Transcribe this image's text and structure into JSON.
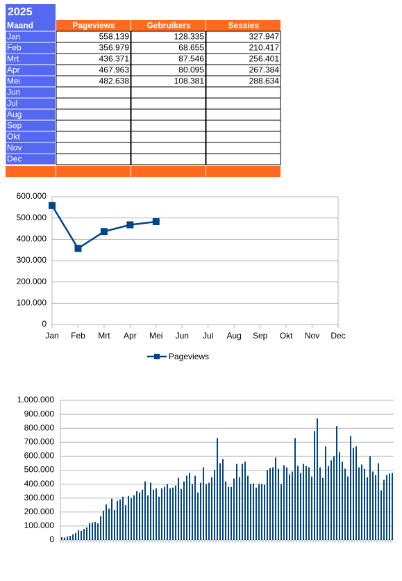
{
  "table": {
    "title": "2025",
    "header": [
      "Maand",
      "Pageviews",
      "Gebruikers",
      "Sessies"
    ],
    "rows": [
      [
        "Jan",
        "558.139",
        "128.335",
        "327.947"
      ],
      [
        "Feb",
        "356.979",
        "68.655",
        "210.417"
      ],
      [
        "Mrt",
        "436.371",
        "87.546",
        "256.401"
      ],
      [
        "Apr",
        "467.963",
        "80.095",
        "267.384"
      ],
      [
        "Mei",
        "482.638",
        "108.381",
        "288.634"
      ],
      [
        "Jun"
      ],
      [
        "Jul"
      ],
      [
        "Aug"
      ],
      [
        "Sep"
      ],
      [
        "Okt"
      ],
      [
        "Nov"
      ],
      [
        "Dec"
      ]
    ]
  },
  "chart_data": [
    {
      "type": "line",
      "categories": [
        "Jan",
        "Feb",
        "Mrt",
        "Apr",
        "Mei",
        "Jun",
        "Jul",
        "Aug",
        "Sep",
        "Okt",
        "Nov",
        "Dec"
      ],
      "series": [
        {
          "name": "Pageviews",
          "color": "#004586",
          "values": [
            558139,
            356979,
            436371,
            467963,
            482638,
            null,
            null,
            null,
            null,
            null,
            null,
            null
          ]
        }
      ],
      "ylim": [
        0,
        600000
      ],
      "yticks": [
        0,
        {
          "value": 100000,
          "label": "100.000"
        },
        {
          "value": 200000,
          "label": "200.000"
        },
        {
          "value": 300000,
          "label": "300.000"
        },
        {
          "value": 400000,
          "label": "400.000"
        },
        {
          "value": 500000,
          "label": "500.000"
        },
        {
          "value": 600000,
          "label": "600.000"
        }
      ],
      "grid": true,
      "legend": "bottom"
    },
    {
      "type": "bar",
      "color": "#004586",
      "categories": [
        null,
        null,
        null,
        null,
        null,
        null,
        null,
        null,
        null,
        null,
        null,
        null,
        null,
        null,
        null,
        null,
        null,
        null,
        null,
        null,
        null,
        null,
        null,
        null,
        null,
        null,
        null,
        null,
        null,
        null,
        null,
        null,
        null,
        null,
        null,
        null,
        null,
        null,
        null,
        null,
        null,
        null,
        null,
        null,
        null,
        null,
        null,
        null,
        null,
        null,
        null,
        null,
        null,
        null,
        null,
        null,
        null,
        null,
        null,
        null,
        null,
        null,
        null,
        null,
        null,
        null,
        null,
        null,
        null,
        null,
        null,
        null,
        null,
        null,
        null,
        null,
        null,
        null,
        null,
        null,
        null,
        null,
        null,
        null,
        null,
        null,
        null,
        null,
        null,
        null,
        null,
        null,
        null,
        null,
        null,
        null,
        null,
        null,
        null,
        null,
        null,
        null,
        null,
        null,
        null,
        null,
        null,
        null,
        null,
        null,
        null,
        null,
        null,
        null,
        null,
        null,
        null,
        null,
        null,
        null
      ],
      "values": [
        20000,
        18000,
        25000,
        30000,
        40000,
        50000,
        70000,
        65000,
        80000,
        90000,
        120000,
        125000,
        130000,
        120000,
        170000,
        210000,
        255000,
        225000,
        295000,
        215000,
        280000,
        290000,
        310000,
        250000,
        315000,
        300000,
        320000,
        350000,
        340000,
        360000,
        420000,
        320000,
        410000,
        360000,
        370000,
        310000,
        370000,
        380000,
        400000,
        370000,
        375000,
        390000,
        445000,
        365000,
        420000,
        460000,
        480000,
        400000,
        460000,
        340000,
        410000,
        520000,
        400000,
        410000,
        450000,
        500000,
        730000,
        550000,
        580000,
        420000,
        380000,
        380000,
        440000,
        545000,
        450000,
        545000,
        560000,
        460000,
        400000,
        405000,
        375000,
        400000,
        400000,
        395000,
        500000,
        515000,
        520000,
        590000,
        510000,
        400000,
        535000,
        520000,
        470000,
        490000,
        730000,
        530000,
        480000,
        545000,
        530000,
        520000,
        455000,
        780000,
        870000,
        520000,
        445000,
        670000,
        530000,
        570000,
        600000,
        815000,
        630000,
        560000,
        510000,
        455000,
        745000,
        660000,
        670000,
        520000,
        540000,
        510000,
        450000,
        600000,
        490000,
        465000,
        550000,
        355000,
        430000,
        465000,
        475000,
        480000
      ],
      "ylim": [
        0,
        1000000
      ],
      "yticks": [
        0,
        {
          "value": 100000,
          "label": "100.000"
        },
        {
          "value": 200000,
          "label": "200.000"
        },
        {
          "value": 300000,
          "label": "300.000"
        },
        {
          "value": 400000,
          "label": "400.000"
        },
        {
          "value": 500000,
          "label": "500.000"
        },
        {
          "value": 600000,
          "label": "600.000"
        },
        {
          "value": 700000,
          "label": "700.000"
        },
        {
          "value": 800000,
          "label": "800.000"
        },
        {
          "value": 900000,
          "label": "900.000"
        },
        {
          "value": 1000000,
          "label": "1.000.000"
        }
      ],
      "grid": true
    }
  ]
}
